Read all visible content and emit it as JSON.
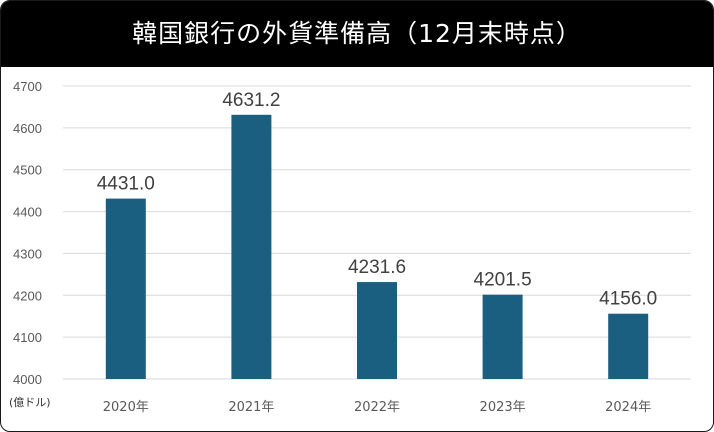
{
  "title": "韓国銀行の外貨準備高（12月末時点）",
  "colors": {
    "bar": "#1b5f80",
    "title_bg": "#000000",
    "grid": "#d9d9d9"
  },
  "chart_data": {
    "type": "bar",
    "title": "韓国銀行の外貨準備高（12月末時点）",
    "unit_label": "(億ドル)",
    "categories": [
      "2020年",
      "2021年",
      "2022年",
      "2023年",
      "2024年"
    ],
    "values": [
      4431.0,
      4631.2,
      4231.6,
      4201.5,
      4156.0
    ],
    "value_labels": [
      "4431.0",
      "4631.2",
      "4231.6",
      "4201.5",
      "4156.0"
    ],
    "ylim": [
      4000,
      4700
    ],
    "yticks": [
      "4000",
      "4100",
      "4200",
      "4300",
      "4400",
      "4500",
      "4600",
      "4700"
    ],
    "grid": true,
    "legend": "none"
  }
}
